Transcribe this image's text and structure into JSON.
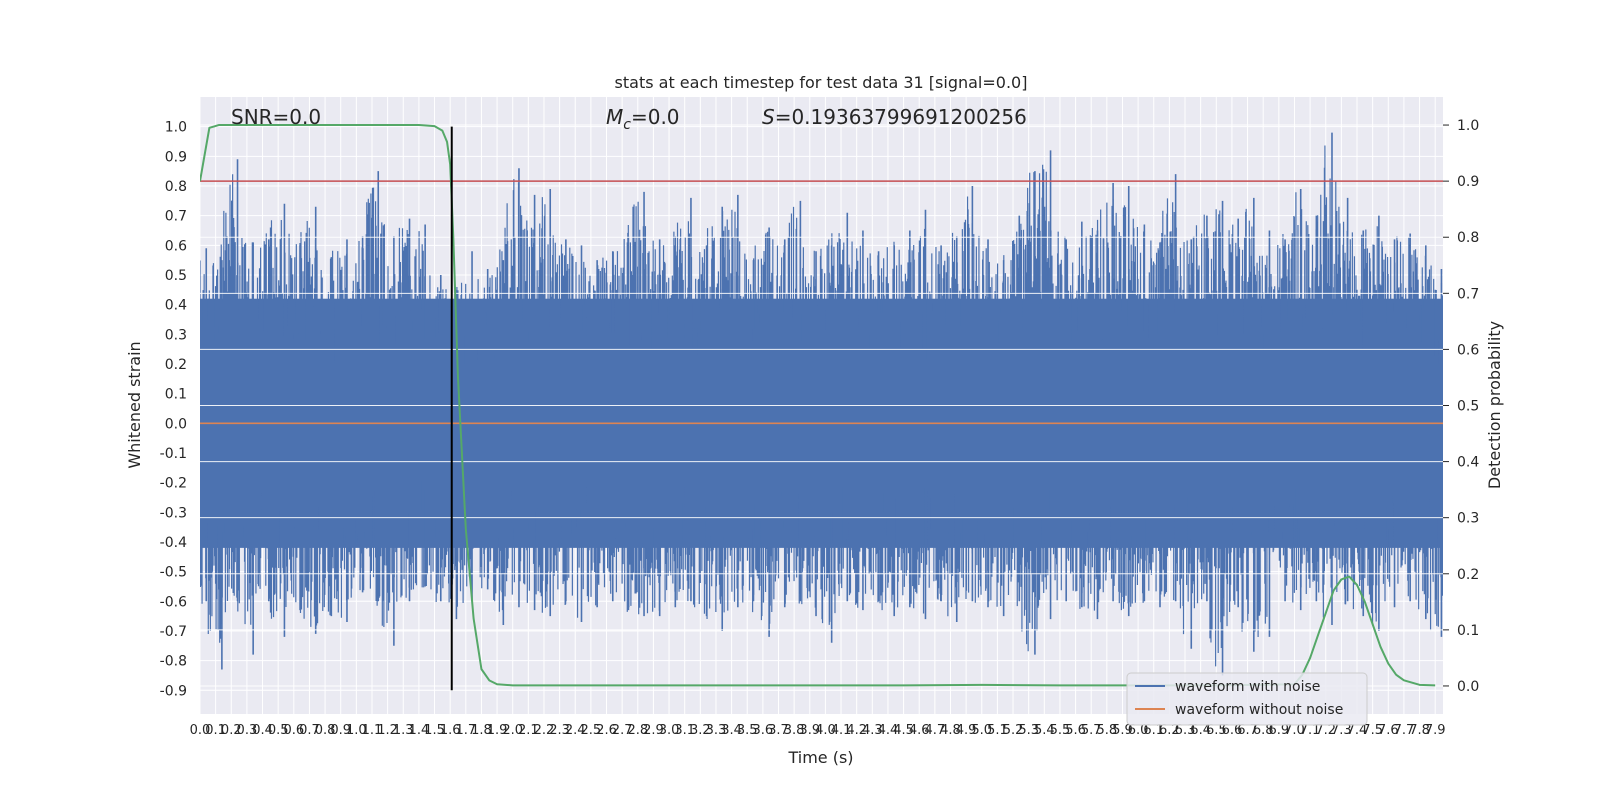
{
  "chart_data": {
    "type": "line",
    "title": "stats at each timestep for test data 31 [signal=0.0]",
    "xlabel": "Time (s)",
    "ylabel": "Whitened strain",
    "ylabel_right": "Detection probability",
    "xlim": [
      0.0,
      7.95
    ],
    "ylim": [
      -0.98,
      1.1
    ],
    "ylim_right": [
      -0.05,
      1.05
    ],
    "grid": true,
    "x_ticks": [
      0.0,
      0.1,
      0.2,
      0.3,
      0.4,
      0.5,
      0.6,
      0.7,
      0.8,
      0.9,
      1.0,
      1.1,
      1.2,
      1.3,
      1.4,
      1.5,
      1.6,
      1.7,
      1.8,
      1.9,
      2.0,
      2.1,
      2.2,
      2.3,
      2.4,
      2.5,
      2.6,
      2.7,
      2.8,
      2.9,
      3.0,
      3.1,
      3.2,
      3.3,
      3.4,
      3.5,
      3.6,
      3.7,
      3.8,
      3.9,
      4.0,
      4.1,
      4.2,
      4.3,
      4.4,
      4.5,
      4.6,
      4.7,
      4.8,
      4.9,
      5.0,
      5.1,
      5.2,
      5.3,
      5.4,
      5.5,
      5.6,
      5.7,
      5.8,
      5.9,
      6.0,
      6.1,
      6.2,
      6.3,
      6.4,
      6.5,
      6.6,
      6.7,
      6.8,
      6.9,
      7.0,
      7.1,
      7.2,
      7.3,
      7.4,
      7.5,
      7.6,
      7.7,
      7.8,
      7.9
    ],
    "y_ticks": [
      1.0,
      0.9,
      0.8,
      0.7,
      0.6,
      0.5,
      0.4,
      0.3,
      0.2,
      0.1,
      0.0,
      -0.1,
      -0.2,
      -0.3,
      -0.4,
      -0.5,
      -0.6,
      -0.7,
      -0.8,
      -0.9
    ],
    "y_ticks_right": [
      1.0,
      0.9,
      0.8,
      0.7,
      0.6,
      0.5,
      0.4,
      0.3,
      0.2,
      0.1,
      0.0
    ],
    "annotations": {
      "snr": "SNR=0.0",
      "mc": "=0.0",
      "mc_symbol": "M",
      "mc_sub": "c",
      "s": "=0.19363799691200256",
      "s_symbol": "S"
    },
    "legend": {
      "position": "lower-right",
      "entries": [
        "waveform with noise",
        "waveform without noise"
      ]
    },
    "colors": {
      "noise": "#4c72b0",
      "clean": "#dd8452",
      "probability": "#55a868",
      "threshold": "#c44e52",
      "marker": "#000000",
      "background": "#eaeaf2"
    },
    "series": [
      {
        "name": "waveform with noise",
        "axis": "left",
        "envelope": {
          "x": [
            0.0,
            0.1,
            0.2,
            0.3,
            0.4,
            0.5,
            0.6,
            0.7,
            0.8,
            0.9,
            1.0,
            1.1,
            1.2,
            1.3,
            1.4,
            1.5,
            1.6,
            1.7,
            1.8,
            1.9,
            2.0,
            2.1,
            2.2,
            2.3,
            2.4,
            2.5,
            2.6,
            2.7,
            2.8,
            2.9,
            3.0,
            3.1,
            3.2,
            3.3,
            3.4,
            3.5,
            3.6,
            3.7,
            3.8,
            3.9,
            4.0,
            4.1,
            4.2,
            4.3,
            4.4,
            4.5,
            4.6,
            4.7,
            4.8,
            4.9,
            5.0,
            5.1,
            5.2,
            5.3,
            5.4,
            5.5,
            5.6,
            5.7,
            5.8,
            5.9,
            6.0,
            6.1,
            6.2,
            6.3,
            6.4,
            6.5,
            6.6,
            6.7,
            6.8,
            6.9,
            7.0,
            7.1,
            7.2,
            7.3,
            7.4,
            7.5,
            7.6,
            7.7,
            7.8,
            7.9
          ],
          "upper": [
            0.59,
            0.55,
            0.89,
            0.61,
            0.62,
            0.74,
            0.6,
            0.73,
            0.56,
            0.62,
            0.63,
            0.85,
            0.63,
            0.69,
            0.67,
            0.5,
            0.45,
            0.58,
            0.52,
            0.55,
            0.86,
            0.77,
            0.79,
            0.62,
            0.6,
            0.55,
            0.58,
            0.63,
            0.78,
            0.62,
            0.6,
            0.76,
            0.6,
            0.73,
            0.77,
            0.55,
            0.66,
            0.62,
            0.75,
            0.58,
            0.6,
            0.71,
            0.65,
            0.58,
            0.6,
            0.65,
            0.72,
            0.6,
            0.63,
            0.8,
            0.62,
            0.55,
            0.7,
            0.85,
            0.92,
            0.62,
            0.68,
            0.65,
            0.81,
            0.8,
            0.67,
            0.61,
            0.84,
            0.62,
            0.7,
            0.75,
            0.69,
            0.76,
            0.65,
            0.62,
            0.79,
            0.7,
            0.98,
            0.76,
            0.65,
            0.7,
            0.62,
            0.64,
            0.6,
            0.52
          ],
          "lower": [
            -0.6,
            -0.83,
            -0.6,
            -0.78,
            -0.6,
            -0.72,
            -0.63,
            -0.71,
            -0.65,
            -0.67,
            -0.57,
            -0.6,
            -0.75,
            -0.6,
            -0.55,
            -0.6,
            -0.66,
            -0.6,
            -0.56,
            -0.68,
            -0.62,
            -0.63,
            -0.65,
            -0.6,
            -0.67,
            -0.62,
            -0.6,
            -0.63,
            -0.65,
            -0.65,
            -0.62,
            -0.6,
            -0.65,
            -0.7,
            -0.62,
            -0.6,
            -0.72,
            -0.62,
            -0.6,
            -0.65,
            -0.74,
            -0.6,
            -0.63,
            -0.6,
            -0.65,
            -0.62,
            -0.66,
            -0.6,
            -0.67,
            -0.6,
            -0.62,
            -0.65,
            -0.6,
            -0.78,
            -0.66,
            -0.6,
            -0.62,
            -0.66,
            -0.6,
            -0.65,
            -0.6,
            -0.62,
            -0.6,
            -0.76,
            -0.6,
            -0.85,
            -0.62,
            -0.77,
            -0.72,
            -0.6,
            -0.63,
            -0.6,
            -0.68,
            -0.6,
            -0.65,
            -0.7,
            -0.62,
            -0.6,
            -0.66,
            -0.72
          ]
        }
      },
      {
        "name": "waveform without noise",
        "axis": "left",
        "x": [
          0.0,
          7.95
        ],
        "y": [
          0.0,
          0.0
        ]
      },
      {
        "name": "detection probability",
        "axis": "right",
        "x": [
          0.0,
          0.06,
          0.12,
          0.2,
          0.4,
          0.8,
          1.2,
          1.4,
          1.5,
          1.55,
          1.58,
          1.6,
          1.62,
          1.65,
          1.7,
          1.75,
          1.8,
          1.85,
          1.9,
          2.0,
          2.5,
          3.0,
          4.0,
          4.5,
          5.0,
          5.5,
          6.0,
          6.5,
          7.0,
          7.05,
          7.1,
          7.15,
          7.2,
          7.25,
          7.3,
          7.35,
          7.4,
          7.45,
          7.5,
          7.55,
          7.6,
          7.65,
          7.7,
          7.8,
          7.9
        ],
        "y": [
          0.9,
          0.995,
          1.0,
          1.0,
          1.0,
          1.0,
          1.0,
          1.0,
          0.998,
          0.99,
          0.97,
          0.93,
          0.8,
          0.55,
          0.28,
          0.12,
          0.03,
          0.01,
          0.003,
          0.001,
          0.001,
          0.001,
          0.001,
          0.001,
          0.002,
          0.001,
          0.001,
          0.001,
          0.003,
          0.02,
          0.05,
          0.09,
          0.13,
          0.17,
          0.19,
          0.195,
          0.18,
          0.15,
          0.11,
          0.07,
          0.04,
          0.02,
          0.01,
          0.002,
          0.001
        ]
      },
      {
        "name": "threshold",
        "axis": "right",
        "x": [
          0.0,
          7.95
        ],
        "y": [
          0.9,
          0.9
        ]
      },
      {
        "name": "detection time marker",
        "axis": "left",
        "x": 1.61,
        "y_range": [
          -0.9,
          1.0
        ]
      }
    ]
  }
}
